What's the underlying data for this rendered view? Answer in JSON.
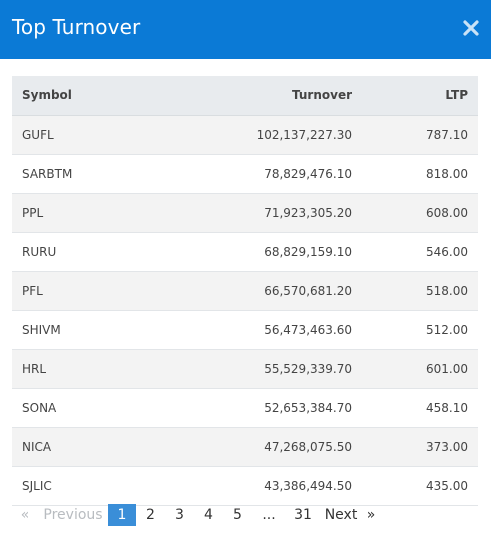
{
  "modal": {
    "title": "Top Turnover"
  },
  "table": {
    "headers": {
      "symbol": "Symbol",
      "turnover": "Turnover",
      "ltp": "LTP"
    },
    "rows": [
      {
        "symbol": "GUFL",
        "turnover": "102,137,227.30",
        "ltp": "787.10"
      },
      {
        "symbol": "SARBTM",
        "turnover": "78,829,476.10",
        "ltp": "818.00"
      },
      {
        "symbol": "PPL",
        "turnover": "71,923,305.20",
        "ltp": "608.00"
      },
      {
        "symbol": "RURU",
        "turnover": "68,829,159.10",
        "ltp": "546.00"
      },
      {
        "symbol": "PFL",
        "turnover": "66,570,681.20",
        "ltp": "518.00"
      },
      {
        "symbol": "SHIVM",
        "turnover": "56,473,463.60",
        "ltp": "512.00"
      },
      {
        "symbol": "HRL",
        "turnover": "55,529,339.70",
        "ltp": "601.00"
      },
      {
        "symbol": "SONA",
        "turnover": "52,653,384.70",
        "ltp": "458.10"
      },
      {
        "symbol": "NICA",
        "turnover": "47,268,075.50",
        "ltp": "373.00"
      },
      {
        "symbol": "SJLIC",
        "turnover": "43,386,494.50",
        "ltp": "435.00"
      }
    ]
  },
  "pagination": {
    "prev_arrow": "«",
    "prev_label": "Previous",
    "pages": [
      "1",
      "2",
      "3",
      "4",
      "5"
    ],
    "ellipsis": "...",
    "last_page": "31",
    "next_label": "Next",
    "next_arrow": "»",
    "active_page": "1"
  },
  "colors": {
    "header_bg": "#0b7ad6",
    "active_page_bg": "#3a8ed8",
    "row_stripe": "#f3f3f3"
  },
  "icons": {
    "close": "close-icon"
  }
}
